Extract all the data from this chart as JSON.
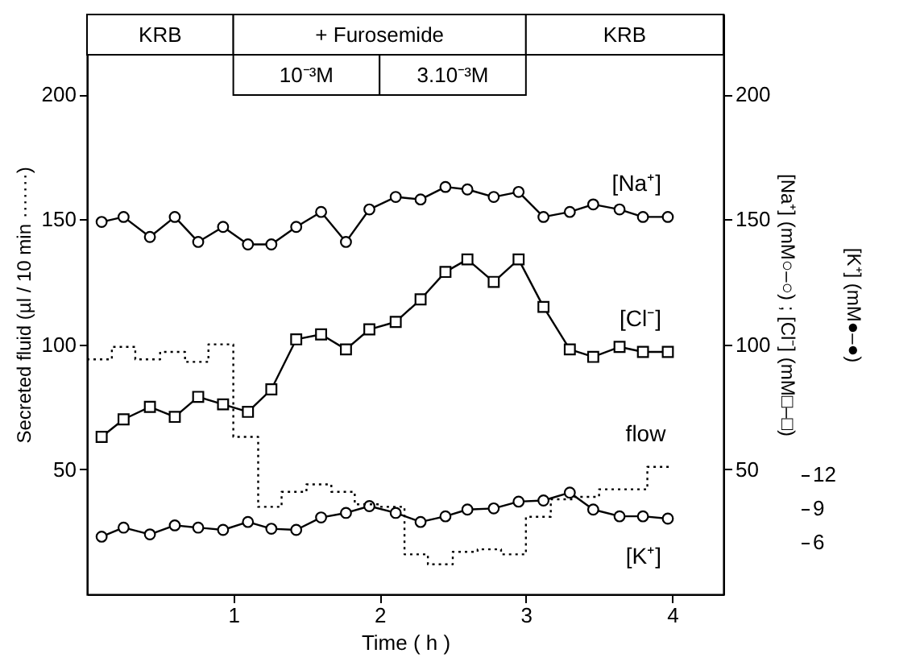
{
  "chart_data": {
    "type": "line",
    "xlabel": "Time ( h )",
    "ylabel": "Secreted fluid (µl / 10 min ·······)",
    "y2label": "[Na⁺] (mM○–○) ; [Cl⁻] (mM□–□)",
    "y3label": "[K⁺] (mM●–●)",
    "x": [
      0.1,
      0.25,
      0.43,
      0.6,
      0.76,
      0.93,
      1.1,
      1.26,
      1.43,
      1.6,
      1.77,
      1.93,
      2.11,
      2.28,
      2.45,
      2.6,
      2.78,
      2.95,
      3.12,
      3.3,
      3.46,
      3.64,
      3.8,
      3.97
    ],
    "series": [
      {
        "name": "[Na⁺]",
        "color": "#000000",
        "axis": "y2",
        "marker": "circle",
        "values": [
          149,
          151,
          143,
          151,
          141,
          147,
          140,
          140,
          147,
          153,
          141,
          154,
          159,
          158,
          163,
          162,
          159,
          161,
          151,
          153,
          156,
          154,
          151,
          151
        ]
      },
      {
        "name": "[Cl⁻]",
        "color": "#000000",
        "axis": "y2",
        "marker": "square",
        "values": [
          63,
          70,
          75,
          71,
          79,
          76,
          73,
          82,
          102,
          104,
          98,
          106,
          109,
          118,
          129,
          134,
          125,
          134,
          115,
          98,
          95,
          99,
          97,
          97
        ]
      },
      {
        "name": "[K⁺]",
        "color": "#000000",
        "axis": "y3",
        "marker": "circle",
        "values": [
          6.5,
          7.3,
          6.7,
          7.5,
          7.3,
          7.1,
          7.8,
          7.2,
          7.1,
          8.2,
          8.6,
          9.2,
          8.6,
          7.8,
          8.3,
          8.9,
          9.0,
          9.6,
          9.7,
          10.4,
          8.9,
          8.3,
          8.3,
          8.1
        ]
      },
      {
        "name": "flow",
        "type": "step",
        "color": "#000000",
        "axis": "y",
        "marker": "none",
        "line_style": "dotted",
        "x": [
          0,
          0.17,
          0.33,
          0.5,
          0.67,
          0.83,
          1,
          1.17,
          1.33,
          1.5,
          1.67,
          1.83,
          2,
          2.17,
          2.33,
          2.5,
          2.67,
          2.83,
          3,
          3.17,
          3.33,
          3.5,
          3.67,
          3.83,
          4
        ],
        "values": [
          94,
          99,
          94,
          97,
          93,
          100,
          63,
          35,
          41,
          44,
          41,
          36,
          35,
          16,
          12,
          17,
          18,
          16,
          31,
          38,
          39,
          42,
          42,
          51,
          51
        ]
      }
    ],
    "xlim": [
      0,
      4.35
    ],
    "xticks": [
      1,
      2,
      3,
      4
    ],
    "ylim": [
      0,
      232
    ],
    "yticks": [
      50,
      100,
      150,
      200
    ],
    "y2lim": [
      0,
      232
    ],
    "y2ticks": [
      50,
      100,
      150,
      200
    ],
    "y3lim": [
      1.4,
      52.7
    ],
    "y3ticks": [
      6,
      9,
      12
    ],
    "bands": [
      {
        "axis": "x",
        "from": 0,
        "to": 1,
        "label": "KRB"
      },
      {
        "axis": "x",
        "from": 1,
        "to": 3,
        "label": "+ Furosemide"
      },
      {
        "axis": "x",
        "from": 1,
        "to": 2,
        "label": "10⁻³M"
      },
      {
        "axis": "x",
        "from": 2,
        "to": 3,
        "label": "3.10⁻³M"
      },
      {
        "axis": "x",
        "from": 3,
        "to": 4.35,
        "label": "KRB"
      }
    ],
    "grid": false,
    "line_style": "solid"
  }
}
